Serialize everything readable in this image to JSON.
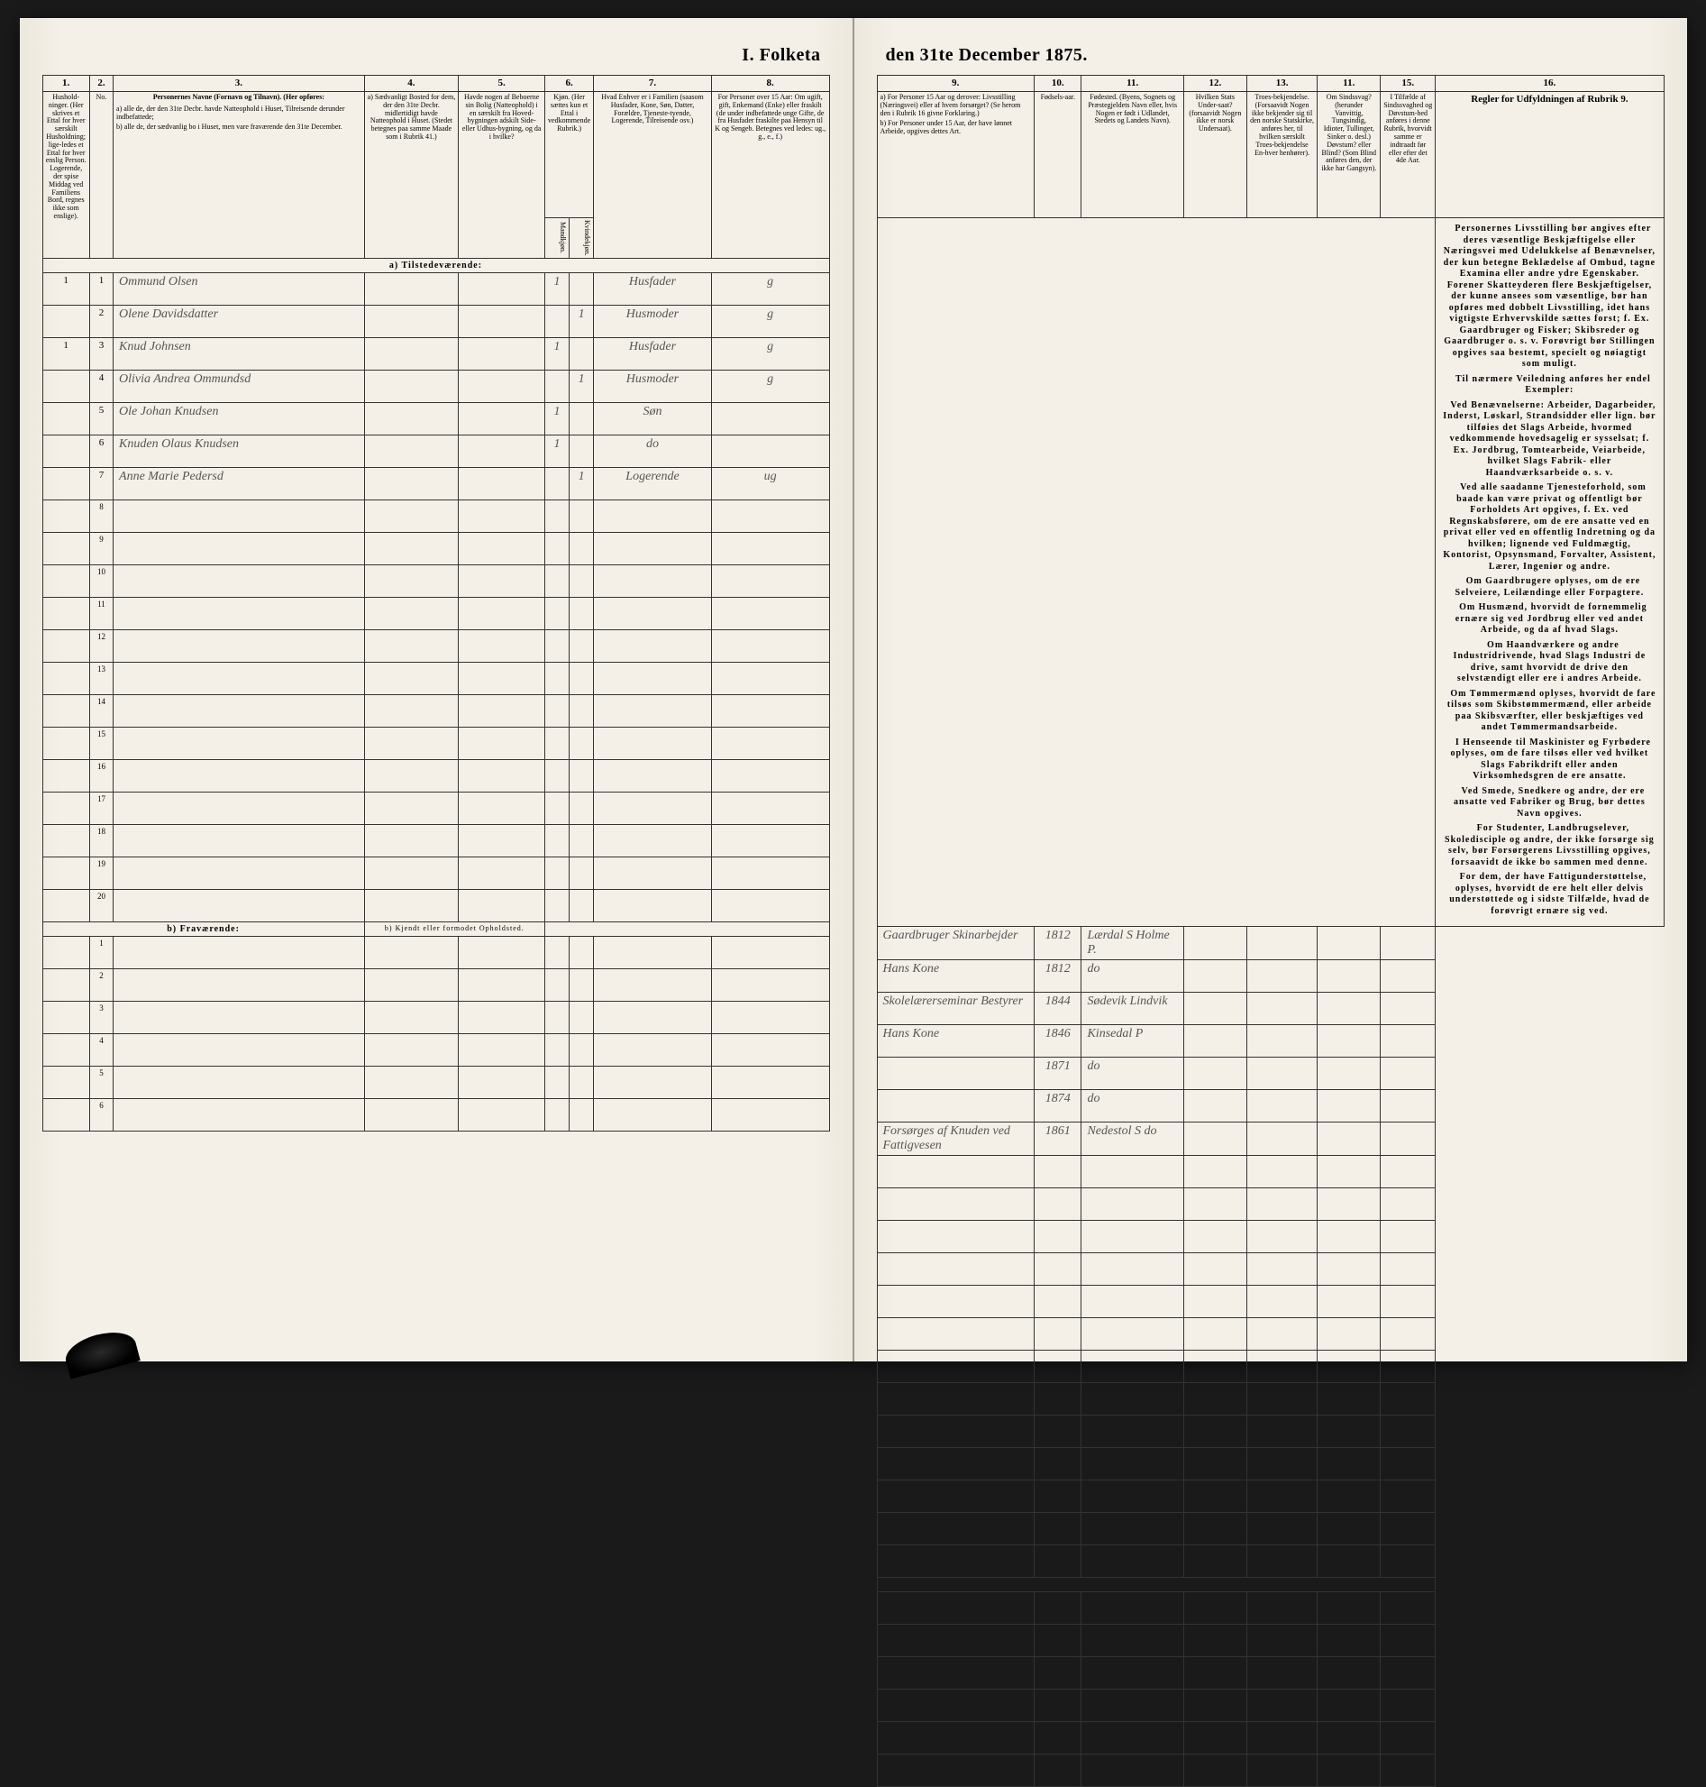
{
  "title_left": "I. Folketa",
  "title_right": "den 31te December 1875.",
  "col_nums_left": [
    "1.",
    "2.",
    "3.",
    "4.",
    "5.",
    "6.",
    "7.",
    "8."
  ],
  "col_nums_right": [
    "9.",
    "10.",
    "11.",
    "12.",
    "13.",
    "11.",
    "15.",
    "16."
  ],
  "headers_left": {
    "c1": "Hushold-ninger. (Her skrives et Ettal for hver særskilt Husholdning; lige-ledes et Ettal for hver enslig Person. Logerende, der spise Middag ved Familiens Bord, regnes ikke som enslige).",
    "c2": "No.",
    "c3_title": "Personernes Navne (Fornavn og Tilnavn). (Her opføres:",
    "c3_a": "a) alle de, der den 31te Decbr. havde Natteophold i Huset, Tilreisende derunder indbefattede;",
    "c3_b": "b) alle de, der sædvanlig bo i Huset, men vare fraværende den 31te December.",
    "c4": "a) Sædvanligt Bosted for dem, der den 31te Decbr. midlertidigt havde Natteophold i Huset. (Stedet betegnes paa samme Maade som i Rubrik 41.)",
    "c5": "Havde nogen af Beboerne sin Bolig (Natteophold) i en særskilt fra Hoved-bygningen adskilt Side-eller Udhus-bygning, og da i hvilke?",
    "c6": "Kjøn. (Her sættes kun et Ettal i vedkommende Rubrik.)",
    "c6a": "Mandkjøn.",
    "c6b": "Kvindekjøn.",
    "c7": "Hvad Enhver er i Familien (saasom Husfader, Kone, Søn, Datter, Forældre, Tjeneste-tyende, Logerende, Tilreisende osv.)",
    "c8": "For Personer over 15 Aar: Om ugift, gift, Enkemand (Enke) eller fraskilt (de under indbefattede unge Gifte, de fra Husfader fraskilte paa Hensyn til K og Sengeb. Betegnes ved ledes: ug., g., e., f.)"
  },
  "headers_right": {
    "c9_a": "a) For Personer 15 Aar og derover: Livsstilling (Næringsvei) eller af hvem forsørget? (Se herom den i Rubrik 16 givne Forklaring.)",
    "c9_b": "b) For Personer under 15 Aar, der have lønnet Arbeide, opgives dettes Art.",
    "c10": "Fødsels-aar.",
    "c11": "Fødested. (Byens, Sognets og Præstegjeldets Navn eller, hvis Nogen er født i Udlandet, Stedets og Landets Navn).",
    "c12": "Hvilken Stats Under-saat? (forsaavidt Nogen ikke er norsk Undersaat).",
    "c13": "Troes-bekjendelse. (Forsaavidt Nogen ikke bekjender sig til den norske Statskirke, anføres her, til hvilken særskilt Troes-bekjendelse En-hver henhører).",
    "c14": "Om Sindssvag? (herunder Vanvittig, Tungsindig, Idioter, Tullinger, Sinker o. desl.) Døvstum? eller Blind? (Som Blind anføres den, der ikke har Gangsyn).",
    "c15": "I Tilfælde af Sindssvaghed og Døvstum-hed anføres i denne Rubrik, hvorvidt samme er indtraadt før eller efter det 4de Aar.",
    "c16": "Regler for Udfyldningen af Rubrik 9."
  },
  "section_a": "a) Tilstedeværende:",
  "section_b": "b) Fraværende:",
  "section_b_note": "b) Kjendt eller formodet Opholdsted.",
  "rows": [
    {
      "hh": "1",
      "no": "1",
      "name": "Ommund Olsen",
      "c4": "",
      "c5": "",
      "m": "1",
      "k": "",
      "c7": "Husfader",
      "c8": "g",
      "c9": "Gaardbruger Skinarbejder",
      "c10": "1812",
      "c11": "Lærdal S Holme P."
    },
    {
      "hh": "",
      "no": "2",
      "name": "Olene Davidsdatter",
      "c4": "",
      "c5": "",
      "m": "",
      "k": "1",
      "c7": "Husmoder",
      "c8": "g",
      "c9": "Hans Kone",
      "c10": "1812",
      "c11": "do"
    },
    {
      "hh": "1",
      "no": "3",
      "name": "Knud Johnsen",
      "c4": "",
      "c5": "",
      "m": "1",
      "k": "",
      "c7": "Husfader",
      "c8": "g",
      "c9": "Skolelærerseminar Bestyrer",
      "c10": "1844",
      "c11": "Sødevik Lindvik"
    },
    {
      "hh": "",
      "no": "4",
      "name": "Olivia Andrea Ommundsd",
      "c4": "",
      "c5": "",
      "m": "",
      "k": "1",
      "c7": "Husmoder",
      "c8": "g",
      "c9": "Hans Kone",
      "c10": "1846",
      "c11": "Kinsedal P"
    },
    {
      "hh": "",
      "no": "5",
      "name": "Ole Johan Knudsen",
      "c4": "",
      "c5": "",
      "m": "1",
      "k": "",
      "c7": "Søn",
      "c8": "",
      "c9": "",
      "c10": "1871",
      "c11": "do"
    },
    {
      "hh": "",
      "no": "6",
      "name": "Knuden Olaus Knudsen",
      "c4": "",
      "c5": "",
      "m": "1",
      "k": "",
      "c7": "do",
      "c8": "",
      "c9": "",
      "c10": "1874",
      "c11": "do"
    },
    {
      "hh": "",
      "no": "7",
      "name": "Anne Marie Pedersd",
      "c4": "",
      "c5": "",
      "m": "",
      "k": "1",
      "c7": "Logerende",
      "c8": "ug",
      "c9": "Forsørges af Knuden ved Fattigvesen",
      "c10": "1861",
      "c11": "Nedestol S do"
    }
  ],
  "empty_a": [
    "8",
    "9",
    "10",
    "11",
    "12",
    "13",
    "14",
    "15",
    "16",
    "17",
    "18",
    "19",
    "20"
  ],
  "empty_b": [
    "1",
    "2",
    "3",
    "4",
    "5",
    "6"
  ],
  "rules_paragraphs": [
    "Personernes Livsstilling bør angives efter deres væsentlige Beskjæftigelse eller Næringsvei med Udelukkelse af Benævnelser, der kun betegne Beklædelse af Ombud, tagne Examina eller andre ydre Egenskaber. Forener Skatteyderen flere Beskjæftigelser, der kunne ansees som væsentlige, bør han opføres med dobbelt Livsstilling, idet hans vigtigste Erhvervskilde sættes forst; f. Ex. Gaardbruger og Fisker; Skibsreder og Gaardbruger o. s. v. Forøvrigt bør Stillingen opgives saa bestemt, specielt og nøiagtigt som muligt.",
    "Til nærmere Veiledning anføres her endel Exempler:",
    "Ved Benævnelserne: Arbeider, Dagarbeider, Inderst, Løskarl, Strandsidder eller lign. bør tilføies det Slags Arbeide, hvormed vedkommende hovedsagelig er sysselsat; f. Ex. Jordbrug, Tomtearbeide, Veiarbeide, hvilket Slags Fabrik- eller Haandværksarbeide o. s. v.",
    "Ved alle saadanne Tjenesteforhold, som baade kan være privat og offentligt bør Forholdets Art opgives, f. Ex. ved Regnskabsførere, om de ere ansatte ved en privat eller ved en offentlig Indretning og da hvilken; lignende ved Fuldmægtig, Kontorist, Opsynsmand, Forvalter, Assistent, Lærer, Ingeniør og andre.",
    "Om Gaardbrugere oplyses, om de ere Selveiere, Leilændinge eller Forpagtere.",
    "Om Husmænd, hvorvidt de fornemmelig ernære sig ved Jordbrug eller ved andet Arbeide, og da af hvad Slags.",
    "Om Haandværkere og andre Industridrivende, hvad Slags Industri de drive, samt hvorvidt de drive den selvstændigt eller ere i andres Arbeide.",
    "Om Tømmermænd oplyses, hvorvidt de fare tilsøs som Skibstømmermænd, eller arbeide paa Skibsværfter, eller beskjæftiges ved andet Tømmermandsarbeide.",
    "I Henseende til Maskinister og Fyrbødere oplyses, om de fare tilsøs eller ved hvilket Slags Fabrikdrift eller anden Virksomhedsgren de ere ansatte.",
    "Ved Smede, Snedkere og andre, der ere ansatte ved Fabriker og Brug, bør dettes Navn opgives.",
    "For Studenter, Landbrugselever, Skoledisciple og andre, der ikke forsørge sig selv, bør Forsørgerens Livsstilling opgives, forsaavidt de ikke bo sammen med denne.",
    "For dem, der have Fattigunderstøttelse, oplyses, hvorvidt de ere helt eller delvis understøttede og i sidste Tilfælde, hvad de forøvrigt ernære sig ved."
  ],
  "colors": {
    "paper": "#f4f0e8",
    "ink": "#222222",
    "handwriting": "#555555",
    "border": "#333333"
  }
}
